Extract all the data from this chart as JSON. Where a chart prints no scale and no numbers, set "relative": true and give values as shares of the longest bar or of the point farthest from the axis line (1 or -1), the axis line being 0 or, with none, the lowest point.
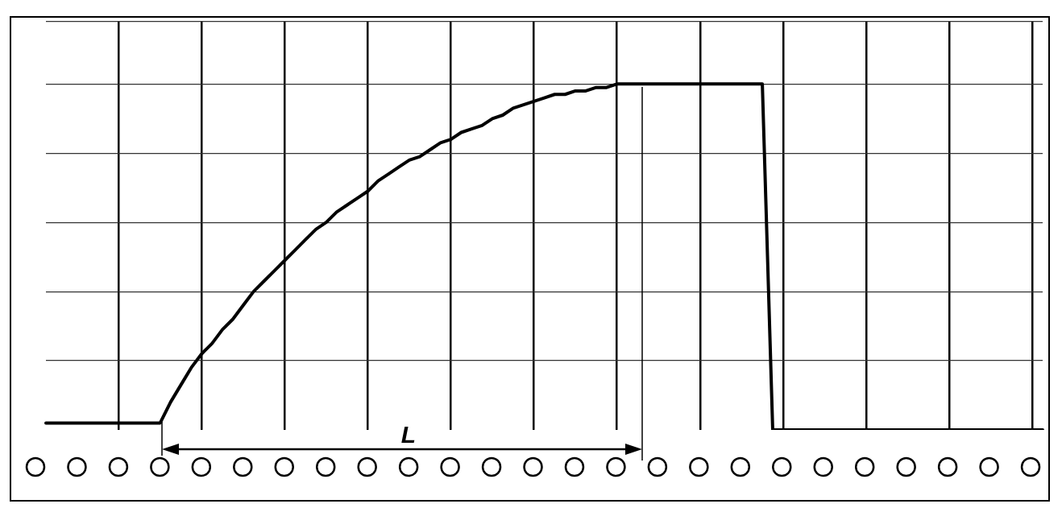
{
  "chart_data": {
    "type": "line",
    "categories": [
      null,
      null,
      null,
      null,
      null,
      null,
      null,
      null,
      null,
      null,
      null,
      null,
      null,
      null,
      null,
      null,
      null,
      null,
      null,
      null,
      null,
      null,
      null,
      null,
      null,
      null,
      null,
      null,
      null,
      null,
      null,
      null,
      null,
      null,
      null,
      null,
      null,
      null,
      null,
      null,
      null,
      null,
      null,
      null,
      null,
      null,
      null,
      null,
      null,
      null,
      null,
      null,
      null,
      null,
      null,
      null,
      null,
      null,
      null,
      null,
      null,
      null,
      null,
      null,
      null,
      null,
      null,
      null,
      null,
      null,
      null,
      null,
      null,
      null,
      null,
      null,
      null,
      null,
      null,
      null,
      null,
      null,
      null,
      null,
      null,
      null,
      null,
      null,
      null,
      null,
      null,
      null,
      null,
      null,
      null,
      null,
      null
    ],
    "series": [
      {
        "color": "#000000",
        "values": [
          0.02,
          0.02,
          0.02,
          0.02,
          0.02,
          0.02,
          0.02,
          0.02,
          0.02,
          0.02,
          0.02,
          0.02,
          0.08,
          0.13,
          0.18,
          0.22,
          0.25,
          0.29,
          0.32,
          0.36,
          0.4,
          0.43,
          0.46,
          0.49,
          0.52,
          0.55,
          0.58,
          0.6,
          0.63,
          0.65,
          0.67,
          0.69,
          0.72,
          0.74,
          0.76,
          0.78,
          0.79,
          0.81,
          0.83,
          0.84,
          0.86,
          0.87,
          0.88,
          0.9,
          0.91,
          0.93,
          0.94,
          0.95,
          0.96,
          0.97,
          0.97,
          0.98,
          0.98,
          0.99,
          0.99,
          1,
          1,
          1,
          1,
          1,
          1,
          1,
          1,
          1,
          1,
          1,
          1,
          1,
          1,
          1,
          0,
          0,
          0,
          0,
          0,
          0,
          0,
          0,
          0,
          0,
          0,
          0,
          0,
          0,
          0,
          0,
          0,
          0,
          0,
          0,
          0,
          0,
          0,
          0,
          0,
          0,
          0
        ]
      }
    ],
    "relative": true,
    "grid": true,
    "marker": "none",
    "annotations": [
      "L"
    ]
  }
}
